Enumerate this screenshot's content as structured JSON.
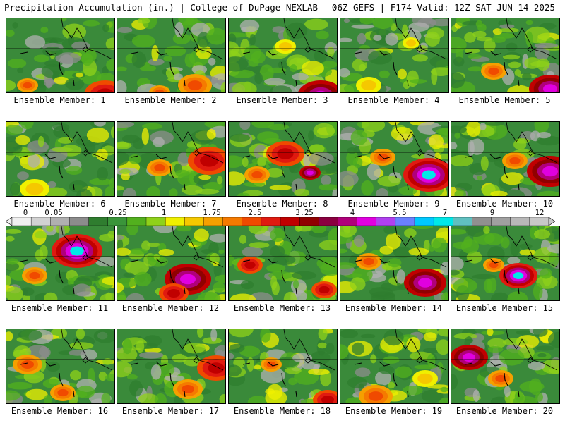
{
  "header": {
    "left": "Precipitation Accumulation (in.) | College of DuPage NEXLAB",
    "right": "06Z GEFS | F174 Valid: 12Z SAT JUN 14 2025"
  },
  "legend": {
    "tick_labels": [
      "0",
      "0.05",
      "0.25",
      "1",
      "1.75",
      "2.5",
      "3.25",
      "4",
      "5.5",
      "7",
      "9",
      "12"
    ],
    "colors": [
      "#f0f0f0",
      "#d2d2d2",
      "#b0b0b0",
      "#8c8c8c",
      "#2f7d2f",
      "#3a953a",
      "#52b01e",
      "#8fd11a",
      "#f0f000",
      "#f5c800",
      "#f5a000",
      "#f57a00",
      "#f04a00",
      "#e01a10",
      "#c00000",
      "#900000",
      "#8b0040",
      "#b0007a",
      "#e000e0",
      "#b040f0",
      "#6a80ff",
      "#00c8ff",
      "#00e8e8",
      "#60c0c0",
      "#909090",
      "#a0a0a0",
      "#b8b8b8",
      "#c8c8c8"
    ]
  },
  "members": [
    {
      "label": "Ensemble Member: 1"
    },
    {
      "label": "Ensemble Member: 2"
    },
    {
      "label": "Ensemble Member: 3"
    },
    {
      "label": "Ensemble Member: 4"
    },
    {
      "label": "Ensemble Member: 5"
    },
    {
      "label": "Ensemble Member: 6"
    },
    {
      "label": "Ensemble Member: 7"
    },
    {
      "label": "Ensemble Member: 8"
    },
    {
      "label": "Ensemble Member: 9"
    },
    {
      "label": "Ensemble Member: 10"
    },
    {
      "label": "Ensemble Member: 11"
    },
    {
      "label": "Ensemble Member: 12"
    },
    {
      "label": "Ensemble Member: 13"
    },
    {
      "label": "Ensemble Member: 14"
    },
    {
      "label": "Ensemble Member: 15"
    },
    {
      "label": "Ensemble Member: 16"
    },
    {
      "label": "Ensemble Member: 17"
    },
    {
      "label": "Ensemble Member: 18"
    },
    {
      "label": "Ensemble Member: 19"
    },
    {
      "label": "Ensemble Member: 20"
    }
  ]
}
